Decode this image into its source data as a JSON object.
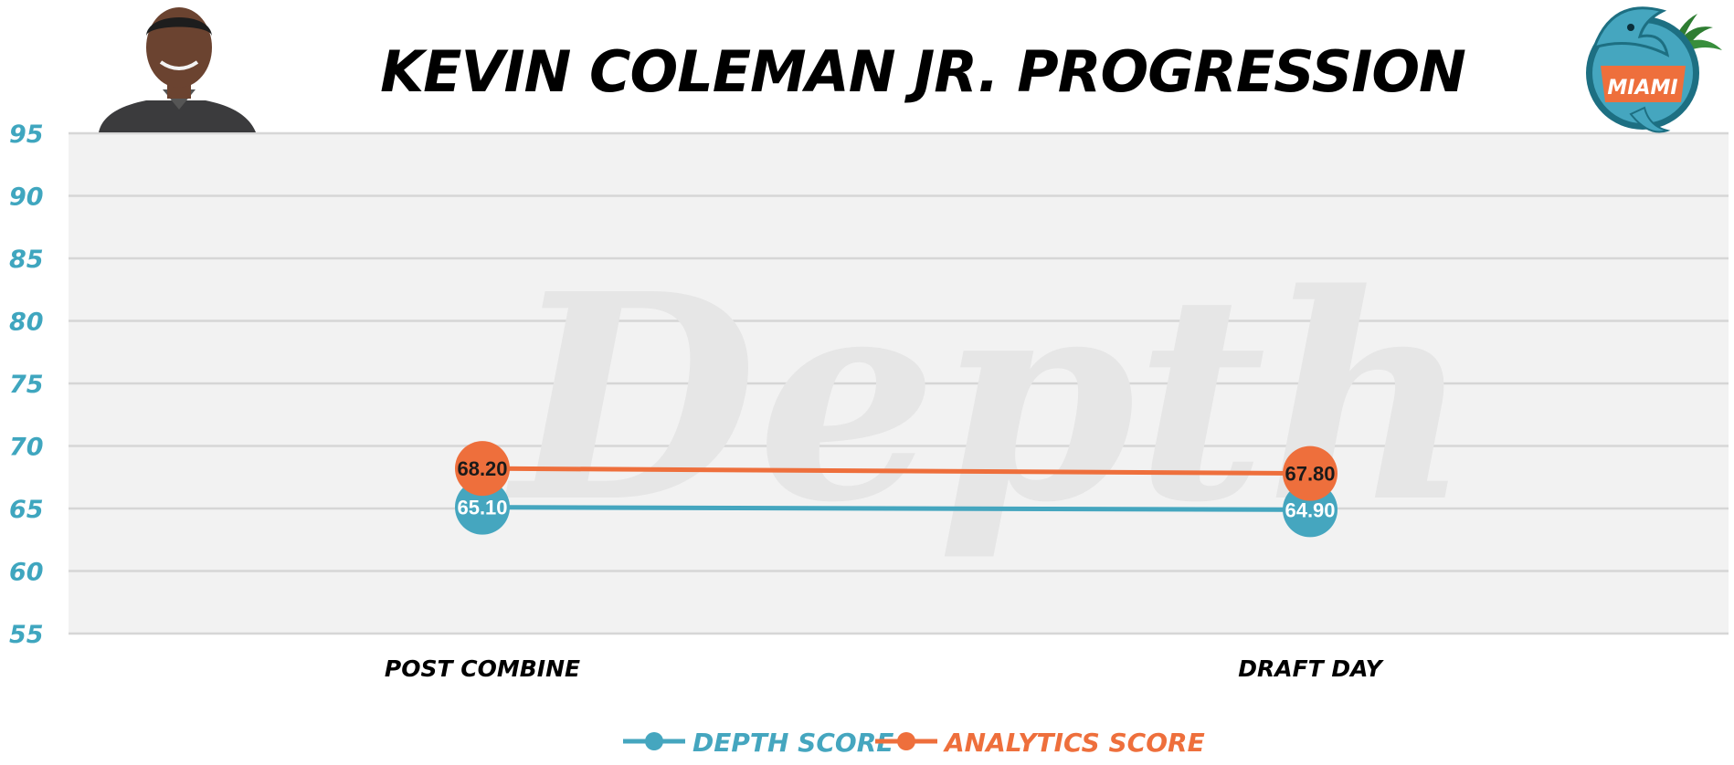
{
  "colors": {
    "depth": "#45a6bf",
    "analytics": "#ee6f3c",
    "plot_bg": "#f2f2f2",
    "grid": "#d6d6d6",
    "ytick": "#3fa6bf"
  },
  "header": {
    "player_photo_icon": "player-headshot-icon",
    "team_logo_icon": "miami-dolphins-logo-icon",
    "team_logo_text": "MIAMI"
  },
  "watermark_text": "Depth",
  "chart_data": {
    "type": "line",
    "title": "KEVIN COLEMAN JR. PROGRESSION",
    "categories": [
      "POST COMBINE",
      "DRAFT DAY"
    ],
    "series": [
      {
        "name": "DEPTH SCORE",
        "values": [
          65.1,
          64.9
        ],
        "labels": [
          "65.10",
          "64.90"
        ],
        "color": "#45a6bf"
      },
      {
        "name": "ANALYTICS SCORE",
        "values": [
          68.2,
          67.8
        ],
        "labels": [
          "68.20",
          "67.80"
        ],
        "color": "#ee6f3c"
      }
    ],
    "ylim": [
      55,
      95
    ],
    "yticks": [
      95,
      90,
      85,
      80,
      75,
      70,
      65,
      60,
      55
    ],
    "grid": true,
    "legend": "bottom-center"
  }
}
